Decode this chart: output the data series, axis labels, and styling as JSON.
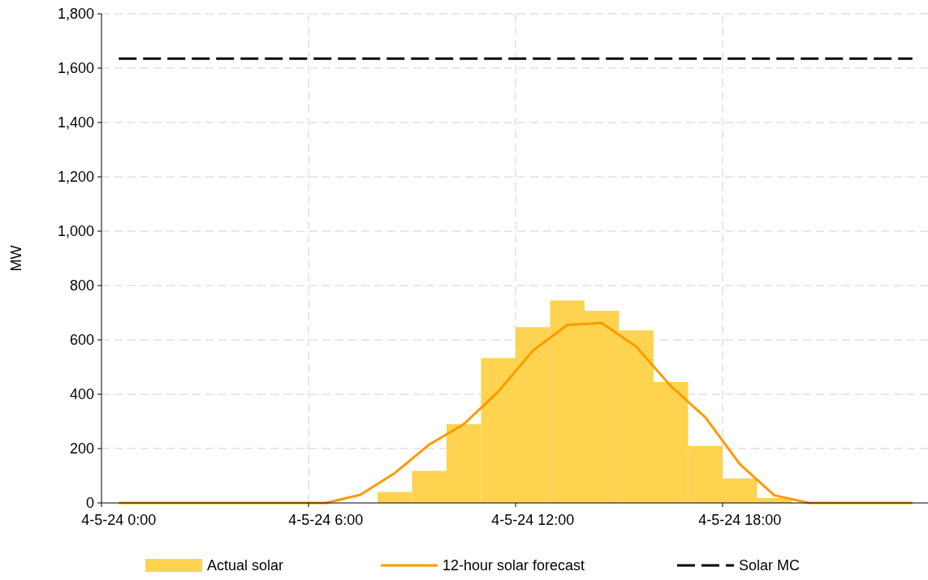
{
  "chart_data": {
    "type": "bar",
    "ylabel": "MW",
    "categories": [
      "4-5-24 0:00",
      null,
      null,
      null,
      null,
      null,
      "4-5-24 6:00",
      null,
      null,
      null,
      null,
      null,
      "4-5-24 12:00",
      null,
      null,
      null,
      null,
      null,
      "4-5-24 18:00",
      null,
      null,
      null,
      null,
      null
    ],
    "series": [
      {
        "name": "Actual solar",
        "color": "#fdd34f",
        "values": [
          0,
          0,
          0,
          0,
          0,
          0,
          0,
          0,
          40,
          118,
          290,
          533,
          647,
          745,
          707,
          635,
          445,
          210,
          90,
          18,
          0,
          0,
          0,
          0
        ]
      },
      {
        "name": "12-hour solar forecast",
        "type": "line",
        "color": "#ff9900",
        "line_style": "solid",
        "values": [
          0,
          0,
          0,
          0,
          0,
          0,
          0,
          30,
          110,
          215,
          290,
          410,
          560,
          655,
          662,
          575,
          430,
          315,
          143,
          28,
          0,
          0,
          0,
          0
        ]
      },
      {
        "name": "Solar MC",
        "type": "line",
        "color": "#000000",
        "line_style": "dashed",
        "values": [
          1635,
          1635,
          1635,
          1635,
          1635,
          1635,
          1635,
          1635,
          1635,
          1635,
          1635,
          1635,
          1635,
          1635,
          1635,
          1635,
          1635,
          1635,
          1635,
          1635,
          1635,
          1635,
          1635,
          1635
        ]
      }
    ],
    "ylim": [
      0,
      1800
    ],
    "yticks": [
      0,
      200,
      400,
      600,
      800,
      {
        "value": 1000,
        "label": "1,000"
      },
      {
        "value": 1200,
        "label": "1,200"
      },
      {
        "value": 1400,
        "label": "1,400"
      },
      {
        "value": 1600,
        "label": "1,600"
      },
      {
        "value": 1800,
        "label": "1,800"
      }
    ],
    "grid": true,
    "legend": "bottom"
  }
}
